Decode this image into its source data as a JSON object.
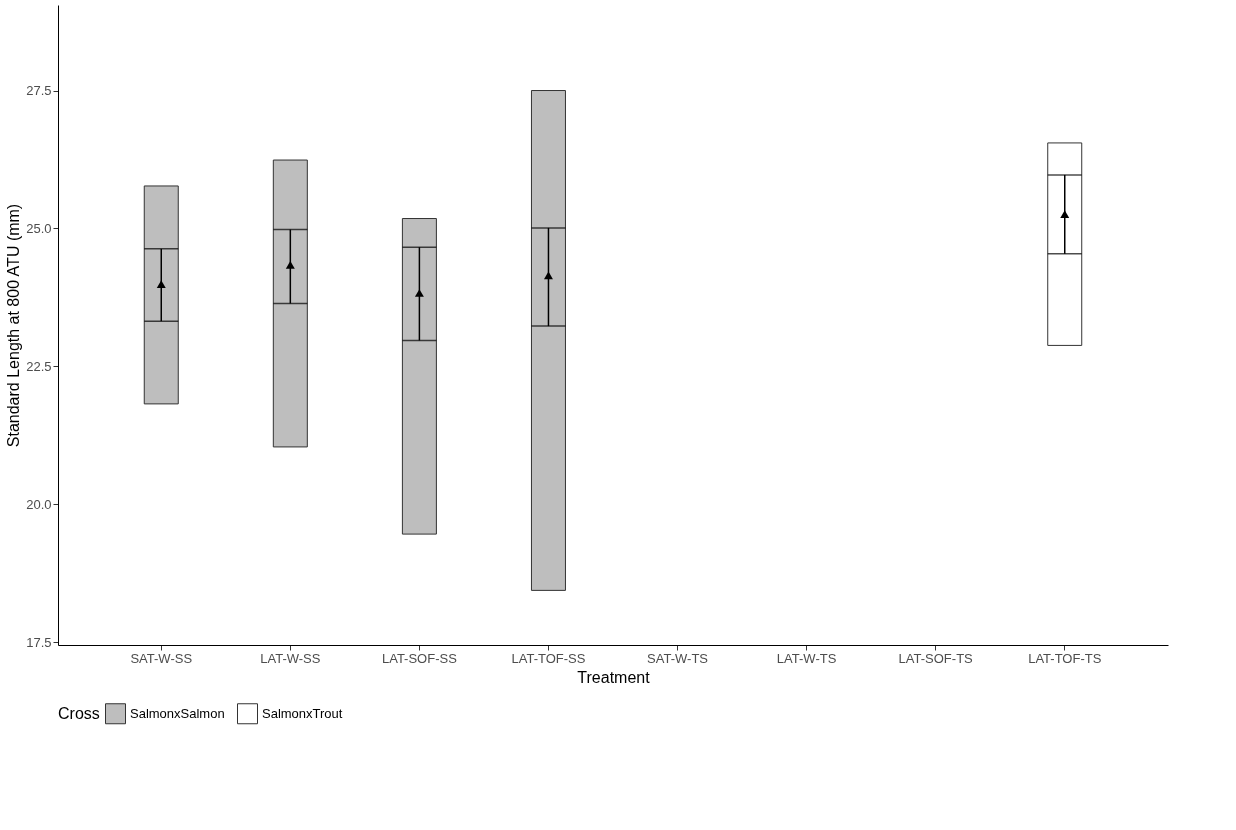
{
  "chart_data": {
    "type": "bar",
    "xlabel": "Treatment",
    "ylabel": "Standard Length at 800 ATU (mm)",
    "legend_title": "Cross",
    "categories": [
      "SAT-W-SS",
      "LAT-W-SS",
      "LAT-SOF-SS",
      "LAT-TOF-SS",
      "SAT-W-TS",
      "LAT-W-TS",
      "LAT-SOF-TS",
      "LAT-TOF-TS"
    ],
    "ylim": [
      17.45,
      29.05
    ],
    "yticks": [
      {
        "value": 17.5,
        "label": "17.5"
      },
      {
        "value": 20,
        "label": "20.0"
      },
      {
        "value": 22.5,
        "label": "22.5"
      },
      {
        "value": 25,
        "label": "25.0"
      },
      {
        "value": 27.5,
        "label": "27.5"
      }
    ],
    "grid": false,
    "legend": "bottom",
    "series": [
      {
        "name": "SalmonxSalmon",
        "color": "#bebebe",
        "base": [
          21.82,
          21.04,
          19.46,
          18.44,
          null,
          null,
          null,
          null
        ],
        "values": [
          3.95,
          5.2,
          5.72,
          9.06,
          null,
          null,
          null,
          null
        ]
      },
      {
        "name": "SalmonxTrout",
        "color": "#ffffff",
        "base": [
          null,
          null,
          null,
          null,
          null,
          null,
          null,
          22.88
        ],
        "values": [
          null,
          null,
          null,
          null,
          null,
          null,
          null,
          3.67
        ]
      },
      {
        "type": "scatter",
        "color": "#000000",
        "marker": "triangle",
        "values": [
          23.99,
          24.34,
          23.83,
          24.15,
          null,
          null,
          null,
          null
        ],
        "errors": [
          [
            23.32,
            24.63
          ],
          [
            23.64,
            24.98
          ],
          [
            22.97,
            24.66
          ],
          [
            23.23,
            25.01
          ],
          null,
          null,
          null,
          null
        ]
      },
      {
        "type": "scatter",
        "color": "#000000",
        "marker": "triangle",
        "values": [
          null,
          null,
          null,
          null,
          null,
          null,
          null,
          25.26
        ],
        "errors": [
          null,
          null,
          null,
          null,
          null,
          null,
          null,
          [
            24.54,
            25.97
          ]
        ]
      }
    ]
  }
}
